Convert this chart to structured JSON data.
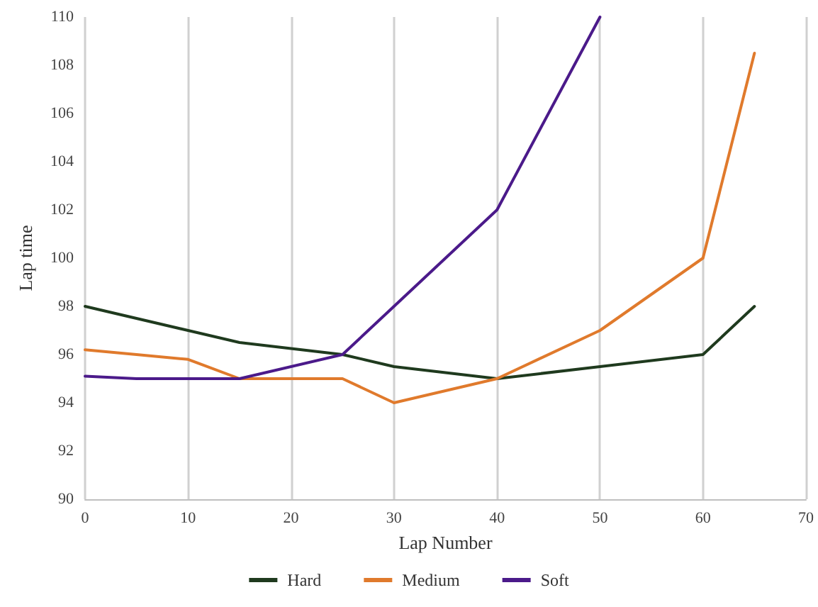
{
  "chart_data": {
    "type": "line",
    "xlabel": "Lap Number",
    "ylabel": "Lap time",
    "xlim": [
      0,
      70
    ],
    "xticks": [
      0,
      10,
      20,
      30,
      40,
      50,
      60,
      70
    ],
    "ylim": [
      90,
      110
    ],
    "yticks": [
      90,
      92,
      94,
      96,
      98,
      100,
      102,
      104,
      106,
      108,
      110
    ],
    "grid": "x",
    "legend": "bottom",
    "marker": "none",
    "line_style": "solid",
    "series": [
      {
        "name": "Hard",
        "color": "#1f3a1e",
        "x": [
          0,
          10,
          15,
          25,
          30,
          40,
          50,
          60,
          65
        ],
        "values": [
          98,
          97,
          96.5,
          96,
          95.5,
          95,
          95.5,
          96,
          98
        ]
      },
      {
        "name": "Medium",
        "color": "#e07a2c",
        "x": [
          0,
          5,
          10,
          15,
          25,
          30,
          40,
          50,
          60,
          65
        ],
        "values": [
          96.2,
          96,
          95.8,
          95,
          95,
          94,
          95,
          97,
          100,
          108.5
        ]
      },
      {
        "name": "Soft",
        "color": "#4b1a8a",
        "x": [
          0,
          5,
          10,
          15,
          25,
          30,
          40,
          50
        ],
        "values": [
          95.1,
          95,
          95,
          95,
          96,
          98,
          102,
          110
        ]
      }
    ]
  }
}
